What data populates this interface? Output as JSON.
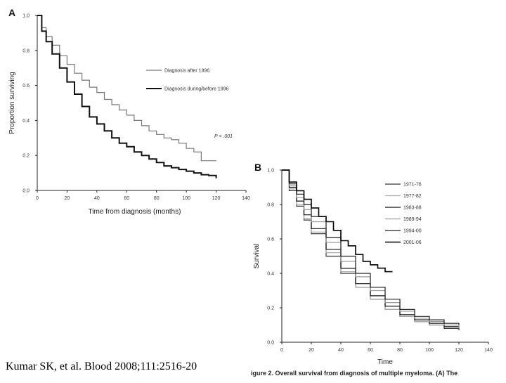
{
  "citation": "Kumar SK, et al. Blood 2008;111:2516-20",
  "caption": "igure 2. Overall survival from diagnosis of multiple myeloma. (A) The",
  "chart_data": [
    {
      "panel": "A",
      "type": "line",
      "xlabel": "Time from diagnosis (months)",
      "ylabel": "Proportion surviving",
      "xlim": [
        0,
        140
      ],
      "ylim": [
        0,
        1.0
      ],
      "xticks": [
        0,
        20,
        40,
        60,
        80,
        100,
        120,
        140
      ],
      "yticks": [
        0.0,
        0.2,
        0.4,
        0.6,
        0.8,
        1.0
      ],
      "annotation": "P < .001",
      "legend_position": "right",
      "series": [
        {
          "name": "Diagnosis after 1996",
          "color": "#777777",
          "x": [
            0,
            3,
            6,
            10,
            15,
            20,
            25,
            30,
            35,
            40,
            45,
            50,
            55,
            60,
            65,
            70,
            75,
            80,
            85,
            90,
            95,
            100,
            105,
            110,
            115,
            120
          ],
          "y": [
            1.0,
            0.93,
            0.88,
            0.83,
            0.77,
            0.72,
            0.67,
            0.63,
            0.59,
            0.56,
            0.52,
            0.49,
            0.46,
            0.43,
            0.4,
            0.37,
            0.34,
            0.32,
            0.3,
            0.29,
            0.27,
            0.24,
            0.22,
            0.17,
            0.17,
            0.17
          ]
        },
        {
          "name": "Diagnosis during/before 1996",
          "color": "#111111",
          "x": [
            0,
            3,
            6,
            10,
            15,
            20,
            25,
            30,
            35,
            40,
            45,
            50,
            55,
            60,
            65,
            70,
            75,
            80,
            85,
            90,
            95,
            100,
            105,
            110,
            115,
            120
          ],
          "y": [
            1.0,
            0.91,
            0.85,
            0.78,
            0.7,
            0.62,
            0.55,
            0.48,
            0.42,
            0.38,
            0.34,
            0.3,
            0.27,
            0.25,
            0.22,
            0.2,
            0.18,
            0.16,
            0.14,
            0.13,
            0.12,
            0.11,
            0.1,
            0.09,
            0.085,
            0.07
          ]
        }
      ]
    },
    {
      "panel": "B",
      "type": "line",
      "xlabel": "Time",
      "ylabel": "Survival",
      "xlim": [
        0,
        140
      ],
      "ylim": [
        0,
        1.0
      ],
      "xticks": [
        0,
        20,
        40,
        60,
        80,
        100,
        120,
        140
      ],
      "yticks": [
        0.0,
        0.2,
        0.4,
        0.6,
        0.8,
        1.0
      ],
      "legend_position": "top-right",
      "series": [
        {
          "name": "1971-76",
          "color": "#333333",
          "x": [
            0,
            5,
            10,
            15,
            20,
            30,
            40,
            50,
            60,
            70,
            80,
            90,
            100,
            110,
            120
          ],
          "y": [
            1.0,
            0.88,
            0.79,
            0.71,
            0.63,
            0.5,
            0.4,
            0.32,
            0.25,
            0.19,
            0.15,
            0.12,
            0.1,
            0.08,
            0.07
          ]
        },
        {
          "name": "1977-82",
          "color": "#aaaaaa",
          "x": [
            0,
            5,
            10,
            15,
            20,
            30,
            40,
            50,
            60,
            70,
            80,
            90,
            100,
            110,
            120
          ],
          "y": [
            1.0,
            0.89,
            0.8,
            0.72,
            0.64,
            0.52,
            0.41,
            0.32,
            0.25,
            0.19,
            0.15,
            0.12,
            0.1,
            0.09,
            0.08
          ]
        },
        {
          "name": "1983-88",
          "color": "#111111",
          "x": [
            0,
            5,
            10,
            15,
            20,
            30,
            40,
            50,
            60,
            70,
            80,
            90,
            100,
            110,
            120
          ],
          "y": [
            1.0,
            0.9,
            0.82,
            0.74,
            0.66,
            0.54,
            0.43,
            0.34,
            0.27,
            0.21,
            0.16,
            0.13,
            0.11,
            0.09,
            0.08
          ]
        },
        {
          "name": "1989-94",
          "color": "#999999",
          "x": [
            0,
            5,
            10,
            15,
            20,
            30,
            40,
            50,
            60,
            70,
            80,
            90,
            100,
            110,
            120
          ],
          "y": [
            1.0,
            0.91,
            0.84,
            0.77,
            0.7,
            0.58,
            0.47,
            0.38,
            0.3,
            0.23,
            0.18,
            0.14,
            0.12,
            0.1,
            0.08
          ]
        },
        {
          "name": "1994-00",
          "color": "#222222",
          "x": [
            0,
            5,
            10,
            15,
            20,
            30,
            40,
            50,
            60,
            70,
            80,
            90,
            100,
            110,
            120
          ],
          "y": [
            1.0,
            0.92,
            0.86,
            0.8,
            0.73,
            0.61,
            0.5,
            0.4,
            0.32,
            0.25,
            0.19,
            0.15,
            0.13,
            0.11,
            0.1
          ]
        },
        {
          "name": "2001-06",
          "color": "#000000",
          "x": [
            0,
            5,
            10,
            15,
            20,
            25,
            30,
            35,
            40,
            45,
            50,
            55,
            60,
            65,
            70,
            75
          ],
          "y": [
            1.0,
            0.93,
            0.88,
            0.83,
            0.78,
            0.73,
            0.7,
            0.65,
            0.59,
            0.56,
            0.51,
            0.47,
            0.45,
            0.43,
            0.41,
            0.41
          ]
        }
      ]
    }
  ]
}
